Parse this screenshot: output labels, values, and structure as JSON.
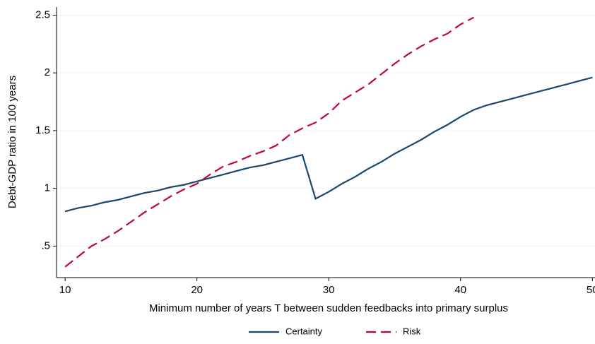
{
  "chart_data": {
    "type": "line",
    "x_label": "Minimum number of years T between sudden feedbacks into primary surplus",
    "y_label": "Debt-GDP ratio in 100 years",
    "x": [
      10,
      11,
      12,
      13,
      14,
      15,
      16,
      17,
      18,
      19,
      20,
      21,
      22,
      23,
      24,
      25,
      26,
      27,
      28,
      29,
      30,
      31,
      32,
      33,
      34,
      35,
      36,
      37,
      38,
      39,
      40,
      41,
      42,
      43,
      44,
      45,
      46,
      47,
      48,
      49,
      50
    ],
    "series": [
      {
        "name": "Certainty",
        "color": "#1a476f",
        "dash": false,
        "values": [
          0.8,
          0.83,
          0.85,
          0.88,
          0.9,
          0.93,
          0.96,
          0.98,
          1.01,
          1.03,
          1.06,
          1.09,
          1.12,
          1.15,
          1.18,
          1.2,
          1.23,
          1.26,
          1.29,
          0.91,
          0.97,
          1.04,
          1.1,
          1.17,
          1.23,
          1.3,
          1.36,
          1.42,
          1.49,
          1.55,
          1.62,
          1.68,
          1.72,
          1.75,
          1.78,
          1.81,
          1.84,
          1.87,
          1.9,
          1.93,
          1.96
        ]
      },
      {
        "name": "Risk",
        "color": "#c10534",
        "dash": true,
        "values": [
          0.32,
          0.41,
          0.5,
          0.56,
          0.63,
          0.71,
          0.79,
          0.86,
          0.93,
          0.99,
          1.04,
          1.12,
          1.19,
          1.23,
          1.28,
          1.32,
          1.37,
          1.46,
          1.52,
          1.57,
          1.65,
          1.76,
          1.83,
          1.9,
          1.99,
          2.08,
          2.16,
          2.23,
          2.29,
          2.34,
          2.42,
          2.48,
          null,
          null,
          null,
          null,
          null,
          null,
          null,
          null,
          null
        ]
      }
    ],
    "xlim": [
      9.35,
      50.2
    ],
    "xticks": [
      10,
      20,
      30,
      40,
      50
    ],
    "ylim": [
      0.227,
      2.57
    ],
    "yticks": [
      {
        "value": 0.5,
        "label": ".5"
      },
      1,
      1.5,
      2,
      2.5
    ],
    "grid": true,
    "legend": "bottom"
  }
}
